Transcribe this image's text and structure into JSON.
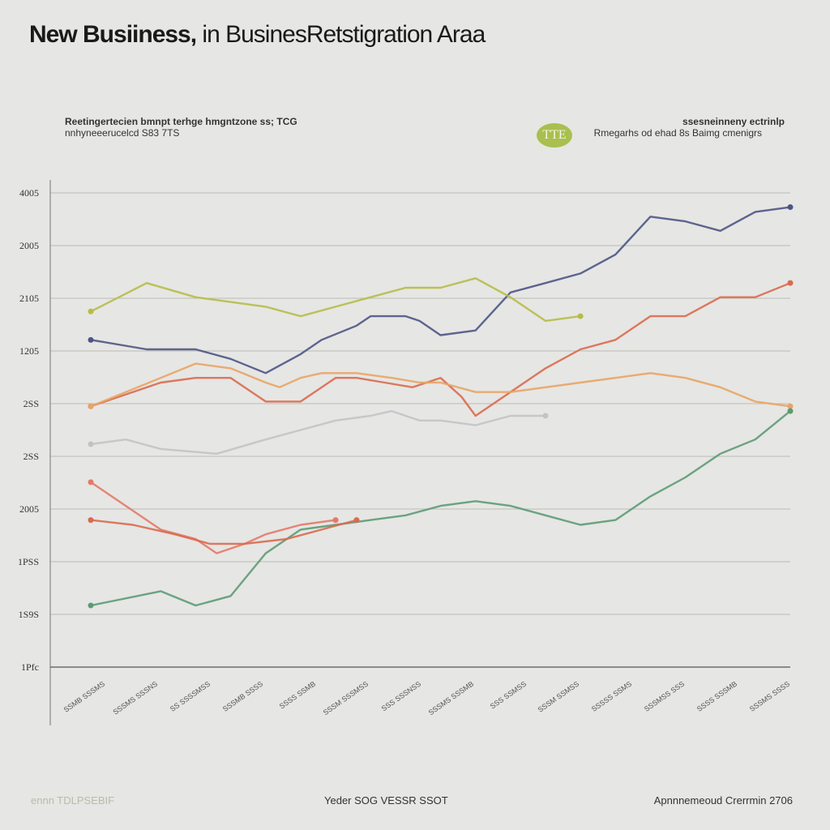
{
  "title": {
    "lead": "New Busiiness,",
    "rest": " in BusinesRetstigration  Araa"
  },
  "notes": {
    "left_line1": "Reetingertecien bmnpt terhge  hmgntzone ss;  TCG",
    "left_line2": "nnhyneeerucelcd S83 7TS",
    "right_line1": "ssesneinneny ectrinlp",
    "right_line2": "Rmegarhs od ehad 8s Baimg cmenigrs",
    "badge": "TTE"
  },
  "footer": {
    "left": "ennn TDLPSEBIF",
    "center": "Yeder SOG VESSR SSOT",
    "right": "Apnnnemeoud Crerrmin 2706"
  },
  "chart_data": {
    "type": "line",
    "title": "New Busiiness, in BusinesRetstigration  Araa",
    "xlabel": "",
    "ylabel": "",
    "y_tick_labels": [
      "1Pfc",
      "1S9S",
      "1PSS",
      "2005",
      "2SS",
      "2SS",
      "1205",
      "2105",
      "2005",
      "4005"
    ],
    "x_tick_labels": [
      "SSMB SSSMS",
      "SSSMS SSSNS",
      "SS SSSSMSS",
      "SSSMB SSSS",
      "SSSS SSMB",
      "SSSM SSSMSS",
      "SSS SSSNSS",
      "SSSMS SSSMB",
      "SSS SSMSS",
      "SSSM SSMSS",
      "SSSSS SSMS",
      "SSSMSS SSS",
      "SSSS SSSMB",
      "SSSMS SSSS"
    ],
    "ylim": [
      0,
      10
    ],
    "xlim": [
      0,
      100
    ],
    "grid": "horizontal",
    "legend": "none",
    "series": [
      {
        "color": "#4e5584",
        "x": [
          0,
          8,
          15,
          20,
          25,
          30,
          33,
          38,
          40,
          45,
          47,
          50,
          55,
          60,
          65,
          70,
          75,
          80,
          85,
          90,
          95,
          100
        ],
        "y": [
          6.9,
          6.7,
          6.7,
          6.5,
          6.2,
          6.6,
          6.9,
          7.2,
          7.4,
          7.4,
          7.3,
          7.0,
          7.1,
          7.9,
          8.1,
          8.3,
          8.7,
          9.5,
          9.4,
          9.2,
          9.6,
          9.7
        ]
      },
      {
        "color": "#d96a4e",
        "x": [
          0,
          10,
          15,
          20,
          25,
          30,
          35,
          38,
          42,
          46,
          50,
          53,
          55,
          60,
          65,
          70,
          75,
          80,
          85,
          90,
          95,
          100
        ],
        "y": [
          5.5,
          6.0,
          6.1,
          6.1,
          5.6,
          5.6,
          6.1,
          6.1,
          6.0,
          5.9,
          6.1,
          5.7,
          5.3,
          5.8,
          6.3,
          6.7,
          6.9,
          7.4,
          7.4,
          7.8,
          7.8,
          8.1
        ]
      },
      {
        "color": "#e8a464",
        "x": [
          0,
          10,
          15,
          20,
          25,
          27,
          30,
          33,
          38,
          43,
          47,
          50,
          55,
          60,
          65,
          70,
          75,
          80,
          85,
          90,
          95,
          100
        ],
        "y": [
          5.5,
          6.1,
          6.4,
          6.3,
          6.0,
          5.9,
          6.1,
          6.2,
          6.2,
          6.1,
          6.0,
          6.0,
          5.8,
          5.8,
          5.9,
          6.0,
          6.1,
          6.2,
          6.1,
          5.9,
          5.6,
          5.5
        ]
      },
      {
        "color": "#b7bb48",
        "x": [
          0,
          8,
          15,
          20,
          25,
          30,
          35,
          40,
          45,
          50,
          55,
          60,
          65,
          70
        ],
        "y": [
          7.5,
          8.1,
          7.8,
          7.7,
          7.6,
          7.4,
          7.6,
          7.8,
          8.0,
          8.0,
          8.2,
          7.8,
          7.3,
          7.4
        ]
      },
      {
        "color": "#c2c3c4",
        "x": [
          0,
          5,
          10,
          18,
          25,
          30,
          35,
          40,
          43,
          47,
          50,
          55,
          60,
          65
        ],
        "y": [
          4.7,
          4.8,
          4.6,
          4.5,
          4.8,
          5.0,
          5.2,
          5.3,
          5.4,
          5.2,
          5.2,
          5.1,
          5.3,
          5.3
        ]
      },
      {
        "color": "#5c9b74",
        "x": [
          0,
          10,
          15,
          20,
          25,
          30,
          35,
          40,
          45,
          50,
          55,
          60,
          65,
          70,
          75,
          80,
          85,
          90,
          95,
          100
        ],
        "y": [
          1.3,
          1.6,
          1.3,
          1.5,
          2.4,
          2.9,
          3.0,
          3.1,
          3.2,
          3.4,
          3.5,
          3.4,
          3.2,
          3.0,
          3.1,
          3.6,
          4.0,
          4.5,
          4.8,
          5.4
        ]
      },
      {
        "color": "#e27a68",
        "x": [
          0,
          5,
          10,
          15,
          18,
          22,
          25,
          30,
          35
        ],
        "y": [
          3.9,
          3.4,
          2.9,
          2.7,
          2.4,
          2.6,
          2.8,
          3.0,
          3.1
        ]
      },
      {
        "color": "#d96a4e",
        "x": [
          0,
          6,
          12,
          17,
          22,
          28,
          33,
          38
        ],
        "y": [
          3.1,
          3.0,
          2.8,
          2.6,
          2.6,
          2.7,
          2.9,
          3.1
        ]
      }
    ]
  }
}
